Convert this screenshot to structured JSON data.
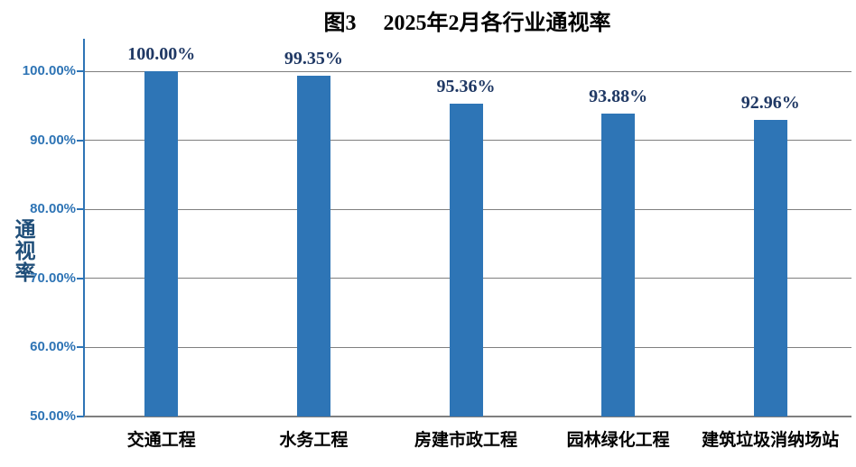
{
  "title": "图3　 2025年2月各行业通视率",
  "colors": {
    "bar": "#2E75B6",
    "axis_line": "#2E74B5",
    "gridline": "#7F7F7F",
    "tick_label": "#2E74B5",
    "data_label": "#1F3864",
    "axis_title": "#1F4E79",
    "title": "#000000",
    "category_label": "#000000",
    "background": "#FFFFFF"
  },
  "chart_data": {
    "type": "bar",
    "title": "图3　 2025年2月各行业通视率",
    "categories": [
      "交通工程",
      "水务工程",
      "房建市政工程",
      "园林绿化工程",
      "建筑垃圾消纳场站"
    ],
    "values": [
      100.0,
      99.35,
      95.36,
      93.88,
      92.96
    ],
    "data_labels": [
      "100.00%",
      "99.35%",
      "95.36%",
      "93.88%",
      "92.96%"
    ],
    "xlabel": "",
    "ylabel": "通视率",
    "ylim": [
      50,
      100
    ],
    "ytick_values": [
      100,
      90,
      80,
      70,
      60,
      50
    ],
    "ytick_labels": [
      "100.00%",
      "90.00%",
      "80.00%",
      "70.00%",
      "60.00%",
      "50.00%"
    ],
    "grid": true,
    "gridlines_at": [
      100,
      90,
      80,
      70,
      60
    ],
    "legend": null
  }
}
